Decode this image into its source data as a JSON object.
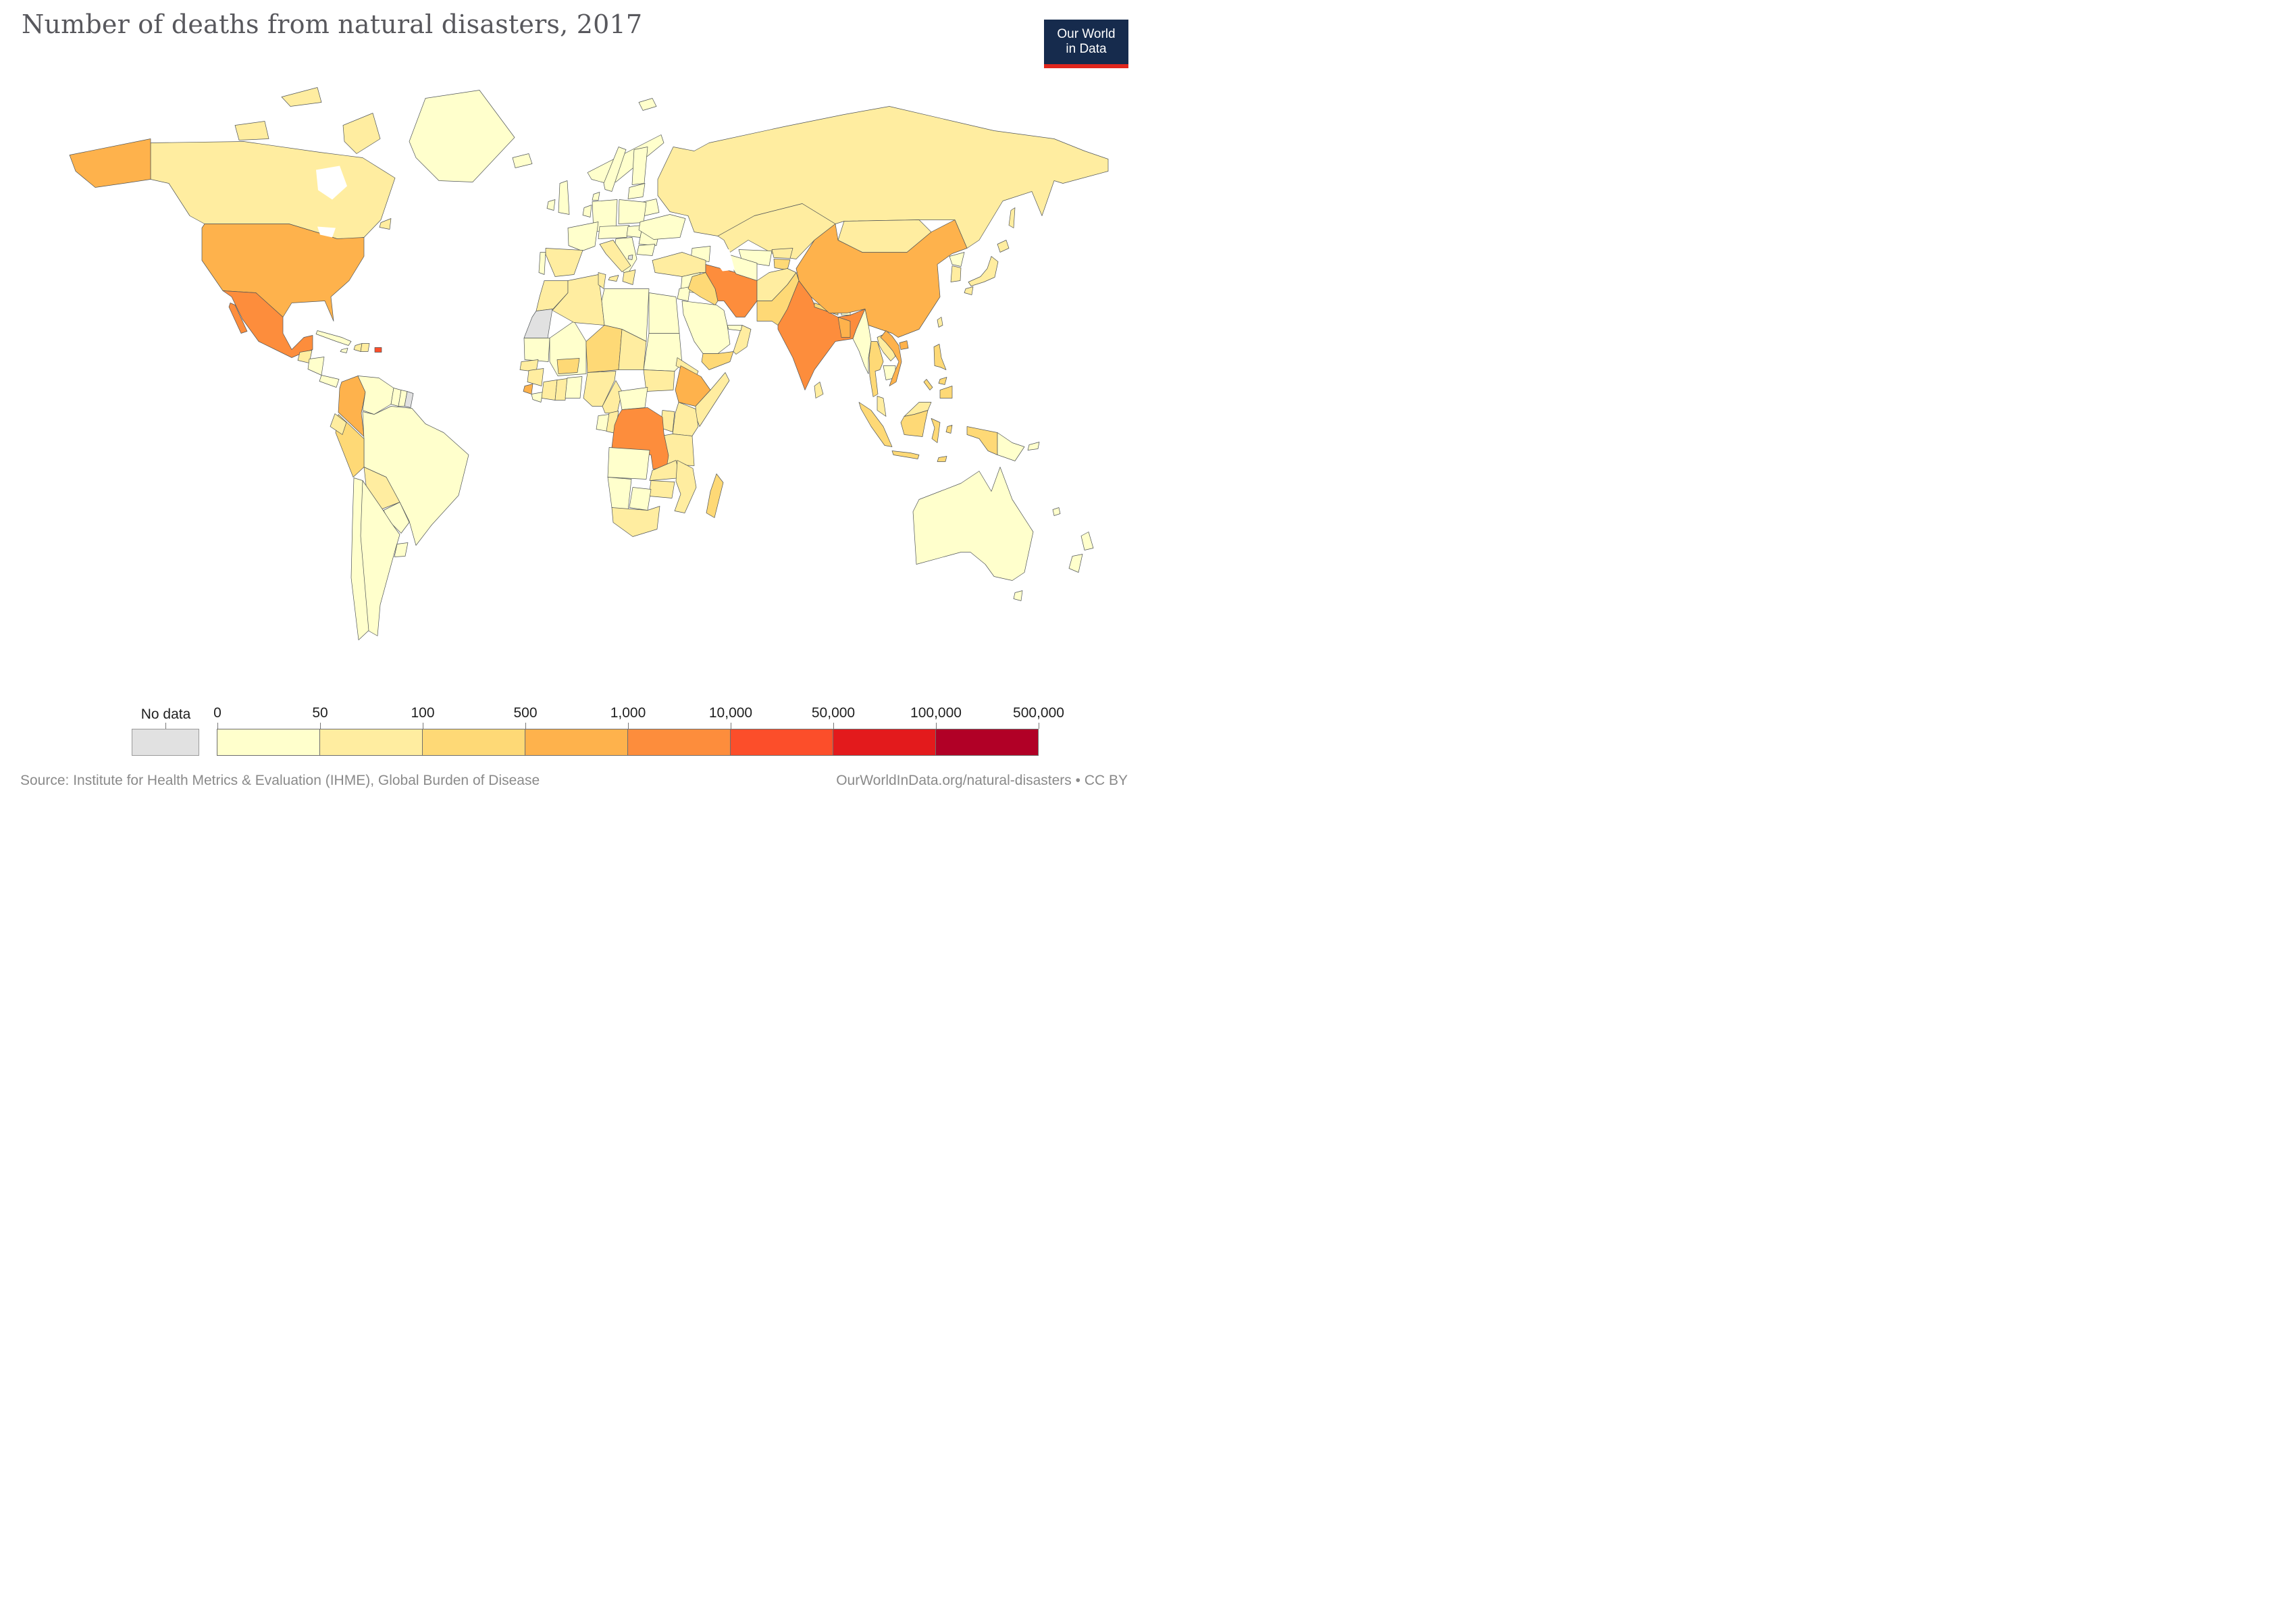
{
  "header": {
    "title": "Number of deaths from natural disasters, 2017"
  },
  "logo": {
    "line1": "Our World",
    "line2": "in Data",
    "bg_color": "#162B4D",
    "underline_color": "#E0261D",
    "text_color": "#FFFFFF"
  },
  "legend": {
    "no_data_label": "No data",
    "no_data_color": "#E1E1E1",
    "ticks": [
      "0",
      "50",
      "100",
      "500",
      "1,000",
      "10,000",
      "50,000",
      "100,000",
      "500,000"
    ],
    "colors": [
      "#FFFFCC",
      "#FFEDA0",
      "#FED976",
      "#FEB24C",
      "#FD8D3C",
      "#FC4E2A",
      "#E31A1C",
      "#B10026"
    ]
  },
  "footer": {
    "source": "Source: Institute for Health Metrics & Evaluation (IHME), Global Burden of Disease",
    "attribution": "OurWorldInData.org/natural-disasters • CC BY"
  },
  "map": {
    "ocean_color": "#FFFFFF",
    "border_color": "#4F5457",
    "countries": {
      "canada": {
        "name": "Canada",
        "bin": 1
      },
      "usa": {
        "name": "United States",
        "bin": 3
      },
      "greenland": {
        "name": "Greenland",
        "bin": 0
      },
      "iceland": {
        "name": "Iceland",
        "bin": 0
      },
      "mexico": {
        "name": "Mexico",
        "bin": 4
      },
      "guatemala": {
        "name": "Guatemala",
        "bin": 1
      },
      "honduras-nicaragua": {
        "name": "Honduras/Nicaragua",
        "bin": 0
      },
      "costa-rica-panama": {
        "name": "Costa Rica/Panama",
        "bin": 0
      },
      "cuba": {
        "name": "Cuba",
        "bin": 0
      },
      "jamaica": {
        "name": "Jamaica",
        "bin": 0
      },
      "haiti": {
        "name": "Haiti",
        "bin": 1
      },
      "dominican-republic": {
        "name": "Dominican Republic",
        "bin": 1
      },
      "puerto-rico": {
        "name": "Puerto Rico",
        "bin": 5
      },
      "colombia": {
        "name": "Colombia",
        "bin": 3
      },
      "venezuela": {
        "name": "Venezuela",
        "bin": 0
      },
      "guyana": {
        "name": "Guyana",
        "bin": 0
      },
      "suriname": {
        "name": "Suriname",
        "bin": 0
      },
      "french-guiana": {
        "name": "French Guiana",
        "bin": "no_data"
      },
      "ecuador": {
        "name": "Ecuador",
        "bin": 1
      },
      "peru": {
        "name": "Peru",
        "bin": 2
      },
      "brazil": {
        "name": "Brazil",
        "bin": 0
      },
      "bolivia": {
        "name": "Bolivia",
        "bin": 1
      },
      "paraguay": {
        "name": "Paraguay",
        "bin": 0
      },
      "chile": {
        "name": "Chile",
        "bin": 0
      },
      "argentina": {
        "name": "Argentina",
        "bin": 0
      },
      "uruguay": {
        "name": "Uruguay",
        "bin": 0
      },
      "uk": {
        "name": "United Kingdom",
        "bin": 0
      },
      "ireland": {
        "name": "Ireland",
        "bin": 0
      },
      "norway": {
        "name": "Norway",
        "bin": 0
      },
      "sweden": {
        "name": "Sweden",
        "bin": 0
      },
      "finland": {
        "name": "Finland",
        "bin": 0
      },
      "denmark": {
        "name": "Denmark",
        "bin": 0
      },
      "baltics": {
        "name": "Baltic states",
        "bin": 0
      },
      "belarus": {
        "name": "Belarus",
        "bin": 0
      },
      "poland": {
        "name": "Poland",
        "bin": 0
      },
      "germany": {
        "name": "Germany",
        "bin": 0
      },
      "benelux": {
        "name": "Benelux",
        "bin": 0
      },
      "france": {
        "name": "France",
        "bin": 0
      },
      "spain": {
        "name": "Spain",
        "bin": 1
      },
      "portugal": {
        "name": "Portugal",
        "bin": 0
      },
      "central-europe": {
        "name": "Czechia/Austria",
        "bin": 0
      },
      "hungary": {
        "name": "Hungary/Slovakia",
        "bin": 0
      },
      "romania": {
        "name": "Romania",
        "bin": 0
      },
      "bulgaria": {
        "name": "Bulgaria",
        "bin": 0
      },
      "balkans": {
        "name": "Balkans",
        "bin": 0
      },
      "kosovo": {
        "name": "Kosovo",
        "bin": "no_data"
      },
      "greece": {
        "name": "Greece",
        "bin": 1
      },
      "italy": {
        "name": "Italy",
        "bin": 1
      },
      "ukraine": {
        "name": "Ukraine",
        "bin": 0
      },
      "russia": {
        "name": "Russia",
        "bin": 1
      },
      "caucasus": {
        "name": "Caucasus",
        "bin": 0
      },
      "turkey": {
        "name": "Turkey",
        "bin": 1
      },
      "syria": {
        "name": "Syria",
        "bin": 0
      },
      "levant": {
        "name": "Jordan/Levant",
        "bin": 0
      },
      "iraq": {
        "name": "Iraq",
        "bin": 2
      },
      "iran": {
        "name": "Iran",
        "bin": 4
      },
      "saudi-arabia": {
        "name": "Saudi Arabia",
        "bin": 0
      },
      "yemen": {
        "name": "Yemen",
        "bin": 2
      },
      "oman": {
        "name": "Oman",
        "bin": 1
      },
      "uae": {
        "name": "United Arab Emirates",
        "bin": 0
      },
      "kazakhstan": {
        "name": "Kazakhstan",
        "bin": 1
      },
      "uzbekistan": {
        "name": "Uzbekistan",
        "bin": 0
      },
      "turkmenistan": {
        "name": "Turkmenistan",
        "bin": 0
      },
      "kyrgyzstan": {
        "name": "Kyrgyzstan",
        "bin": 1
      },
      "tajikistan": {
        "name": "Tajikistan",
        "bin": 2
      },
      "afghanistan": {
        "name": "Afghanistan",
        "bin": 1
      },
      "pakistan": {
        "name": "Pakistan",
        "bin": 2
      },
      "india": {
        "name": "India",
        "bin": 4
      },
      "nepal": {
        "name": "Nepal",
        "bin": 2
      },
      "bhutan": {
        "name": "Bhutan",
        "bin": 0
      },
      "bangladesh": {
        "name": "Bangladesh",
        "bin": 3
      },
      "sri-lanka": {
        "name": "Sri Lanka",
        "bin": 1
      },
      "china": {
        "name": "China",
        "bin": 3
      },
      "mongolia": {
        "name": "Mongolia",
        "bin": 1
      },
      "north-korea": {
        "name": "North Korea",
        "bin": 0
      },
      "south-korea": {
        "name": "South Korea",
        "bin": 1
      },
      "japan": {
        "name": "Japan",
        "bin": 1
      },
      "taiwan": {
        "name": "Taiwan",
        "bin": 1
      },
      "myanmar": {
        "name": "Myanmar",
        "bin": 0
      },
      "thailand": {
        "name": "Thailand",
        "bin": 2
      },
      "laos": {
        "name": "Laos",
        "bin": 1
      },
      "cambodia": {
        "name": "Cambodia",
        "bin": 0
      },
      "vietnam": {
        "name": "Vietnam",
        "bin": 3
      },
      "malaysia": {
        "name": "Malaysia",
        "bin": 1
      },
      "indonesia": {
        "name": "Indonesia",
        "bin": 2
      },
      "philippines": {
        "name": "Philippines",
        "bin": 2
      },
      "png": {
        "name": "Papua New Guinea",
        "bin": 0
      },
      "australia": {
        "name": "Australia",
        "bin": 0
      },
      "new-zealand": {
        "name": "New Zealand",
        "bin": 0
      },
      "new-caledonia": {
        "name": "New Caledonia",
        "bin": 0
      },
      "morocco": {
        "name": "Morocco",
        "bin": 1
      },
      "western-sahara": {
        "name": "Western Sahara",
        "bin": "no_data"
      },
      "mauritania": {
        "name": "Mauritania",
        "bin": 0
      },
      "senegal": {
        "name": "Senegal",
        "bin": 1
      },
      "mali": {
        "name": "Mali",
        "bin": 0
      },
      "algeria": {
        "name": "Algeria",
        "bin": 1
      },
      "tunisia": {
        "name": "Tunisia",
        "bin": 1
      },
      "libya": {
        "name": "Libya",
        "bin": 0
      },
      "egypt": {
        "name": "Egypt",
        "bin": 0
      },
      "sudan": {
        "name": "Sudan",
        "bin": 0
      },
      "south-sudan": {
        "name": "South Sudan",
        "bin": 1
      },
      "eritrea": {
        "name": "Eritrea",
        "bin": 1
      },
      "ethiopia": {
        "name": "Ethiopia",
        "bin": 3
      },
      "somalia": {
        "name": "Somalia",
        "bin": 1
      },
      "kenya": {
        "name": "Kenya",
        "bin": 1
      },
      "uganda": {
        "name": "Uganda",
        "bin": 1
      },
      "tanzania": {
        "name": "Tanzania",
        "bin": 1
      },
      "niger": {
        "name": "Niger",
        "bin": 2
      },
      "chad": {
        "name": "Chad",
        "bin": 1
      },
      "nigeria": {
        "name": "Nigeria",
        "bin": 1
      },
      "burkina-faso": {
        "name": "Burkina Faso",
        "bin": 2
      },
      "guinea": {
        "name": "Guinea",
        "bin": 1
      },
      "sierra-leone": {
        "name": "Sierra Leone",
        "bin": 3
      },
      "liberia": {
        "name": "Liberia",
        "bin": 0
      },
      "cote-divoire": {
        "name": "Côte d'Ivoire",
        "bin": 1
      },
      "ghana": {
        "name": "Ghana",
        "bin": 1
      },
      "benin-togo": {
        "name": "Benin/Togo",
        "bin": 0
      },
      "cameroon": {
        "name": "Cameroon",
        "bin": 1
      },
      "central-african-republic": {
        "name": "Central African Republic",
        "bin": 0
      },
      "gabon": {
        "name": "Gabon",
        "bin": 0
      },
      "congo": {
        "name": "Congo",
        "bin": 1
      },
      "drc": {
        "name": "Democratic Republic of Congo",
        "bin": 4
      },
      "angola": {
        "name": "Angola",
        "bin": 0
      },
      "zambia": {
        "name": "Zambia",
        "bin": 1
      },
      "malawi": {
        "name": "Malawi",
        "bin": 1
      },
      "mozambique": {
        "name": "Mozambique",
        "bin": 1
      },
      "zimbabwe": {
        "name": "Zimbabwe",
        "bin": 1
      },
      "botswana": {
        "name": "Botswana",
        "bin": 0
      },
      "namibia": {
        "name": "Namibia",
        "bin": 0
      },
      "south-africa": {
        "name": "South Africa",
        "bin": 1
      },
      "madagascar": {
        "name": "Madagascar",
        "bin": 2
      }
    }
  },
  "chart_data": {
    "type": "choropleth",
    "title": "Number of deaths from natural disasters, 2017",
    "year": 2017,
    "unit": "deaths",
    "legend_position": "bottom",
    "bin_ranges": [
      "0-50",
      "50-100",
      "100-500",
      "500-1,000",
      "1,000-10,000",
      "10,000-50,000",
      "50,000-100,000",
      "100,000-500,000"
    ],
    "bin_colors": [
      "#FFFFCC",
      "#FFEDA0",
      "#FED976",
      "#FEB24C",
      "#FD8D3C",
      "#FC4E2A",
      "#E31A1C",
      "#B10026"
    ],
    "no_data": [
      "Western Sahara",
      "French Guiana",
      "Kosovo"
    ],
    "countries_by_bin": {
      "1,000-10,000": [
        "India",
        "Mexico",
        "Iran",
        "Democratic Republic of Congo"
      ],
      "10,000-50,000": [
        "Puerto Rico"
      ],
      "500-1,000": [
        "United States",
        "China",
        "Vietnam",
        "Bangladesh",
        "Ethiopia",
        "Colombia",
        "Sierra Leone"
      ],
      "100-500": [
        "Niger",
        "Burkina Faso",
        "Yemen",
        "Iraq",
        "Madagascar",
        "Tajikistan",
        "Pakistan",
        "Nepal",
        "Thailand",
        "Indonesia",
        "Philippines",
        "Peru"
      ],
      "50-100": [
        "Canada",
        "Russia",
        "Kazakhstan",
        "Mongolia",
        "Japan",
        "South Korea",
        "Taiwan",
        "Afghanistan",
        "Sri Lanka",
        "Malaysia",
        "Laos",
        "Morocco",
        "Algeria",
        "Tunisia",
        "Senegal",
        "Guinea",
        "Côte d'Ivoire",
        "Ghana",
        "Nigeria",
        "Chad",
        "South Sudan",
        "Eritrea",
        "Somalia",
        "Kenya",
        "Uganda",
        "Tanzania",
        "Cameroon",
        "Congo",
        "Zambia",
        "Malawi",
        "Mozambique",
        "Zimbabwe",
        "South Africa",
        "Ecuador",
        "Bolivia",
        "Haiti",
        "Dominican Republic",
        "Guatemala",
        "Spain",
        "Italy",
        "Greece",
        "Turkey",
        "Oman",
        "Kyrgyzstan"
      ],
      "0-50": [
        "Greenland",
        "Iceland",
        "most of Europe",
        "Brazil",
        "Argentina",
        "Chile",
        "Paraguay",
        "Uruguay",
        "Venezuela",
        "Guyana",
        "Suriname",
        "Cuba",
        "Jamaica",
        "Saudi Arabia",
        "Libya",
        "Egypt",
        "Sudan",
        "Mali",
        "Mauritania",
        "Myanmar",
        "Cambodia",
        "North Korea",
        "Papua New Guinea",
        "Australia",
        "New Zealand"
      ]
    }
  }
}
